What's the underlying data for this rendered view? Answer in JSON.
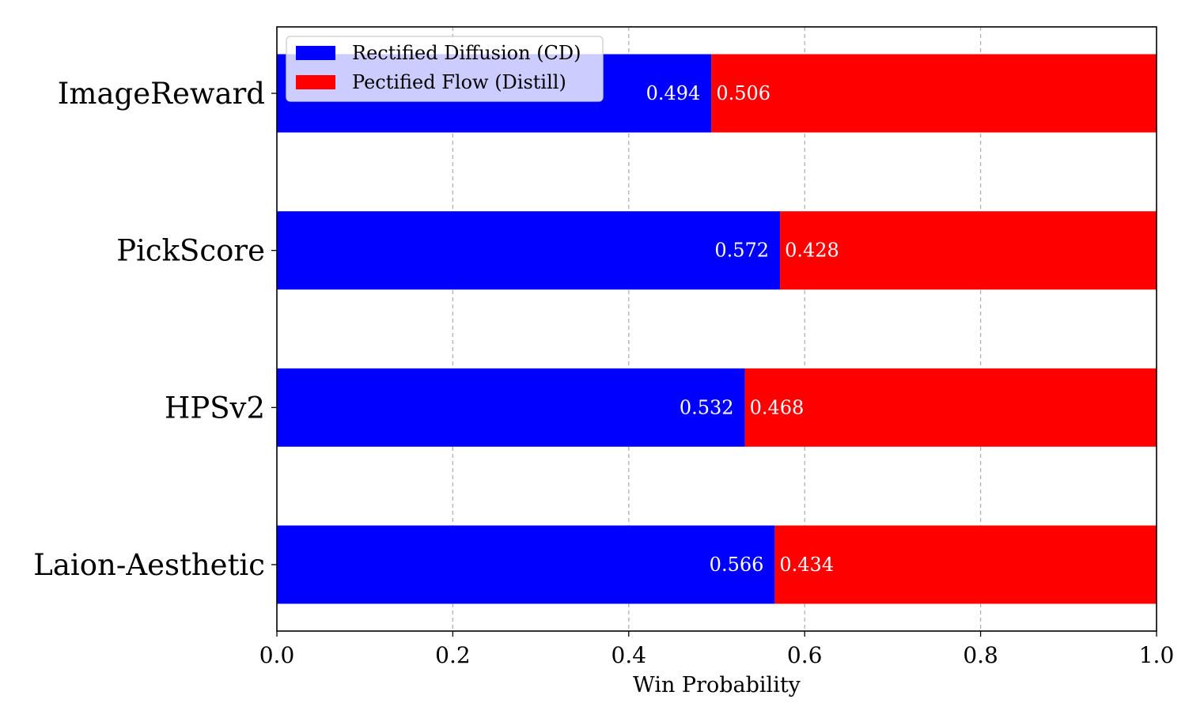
{
  "chart_data": {
    "type": "bar",
    "orientation": "horizontal",
    "stacked": true,
    "categories": [
      "ImageReward",
      "PickScore",
      "HPSv2",
      "Laion-Aesthetic"
    ],
    "series": [
      {
        "name": "Rectified Diffusion (CD)",
        "color": "#0000ff",
        "values": [
          0.494,
          0.572,
          0.532,
          0.566
        ],
        "labels": [
          "0.494",
          "0.572",
          "0.532",
          "0.566"
        ]
      },
      {
        "name": "Pectified Flow (Distill)",
        "color": "#ff0000",
        "values": [
          0.506,
          0.428,
          0.468,
          0.434
        ],
        "labels": [
          "0.506",
          "0.428",
          "0.468",
          "0.434"
        ]
      }
    ],
    "xlabel": "Win Probability",
    "ylabel": "",
    "xlim": [
      0,
      1
    ],
    "xticks": [
      "0.0",
      "0.2",
      "0.4",
      "0.6",
      "0.8",
      "1.0"
    ],
    "grid": "x-dashed",
    "legend_position": "upper-left"
  }
}
